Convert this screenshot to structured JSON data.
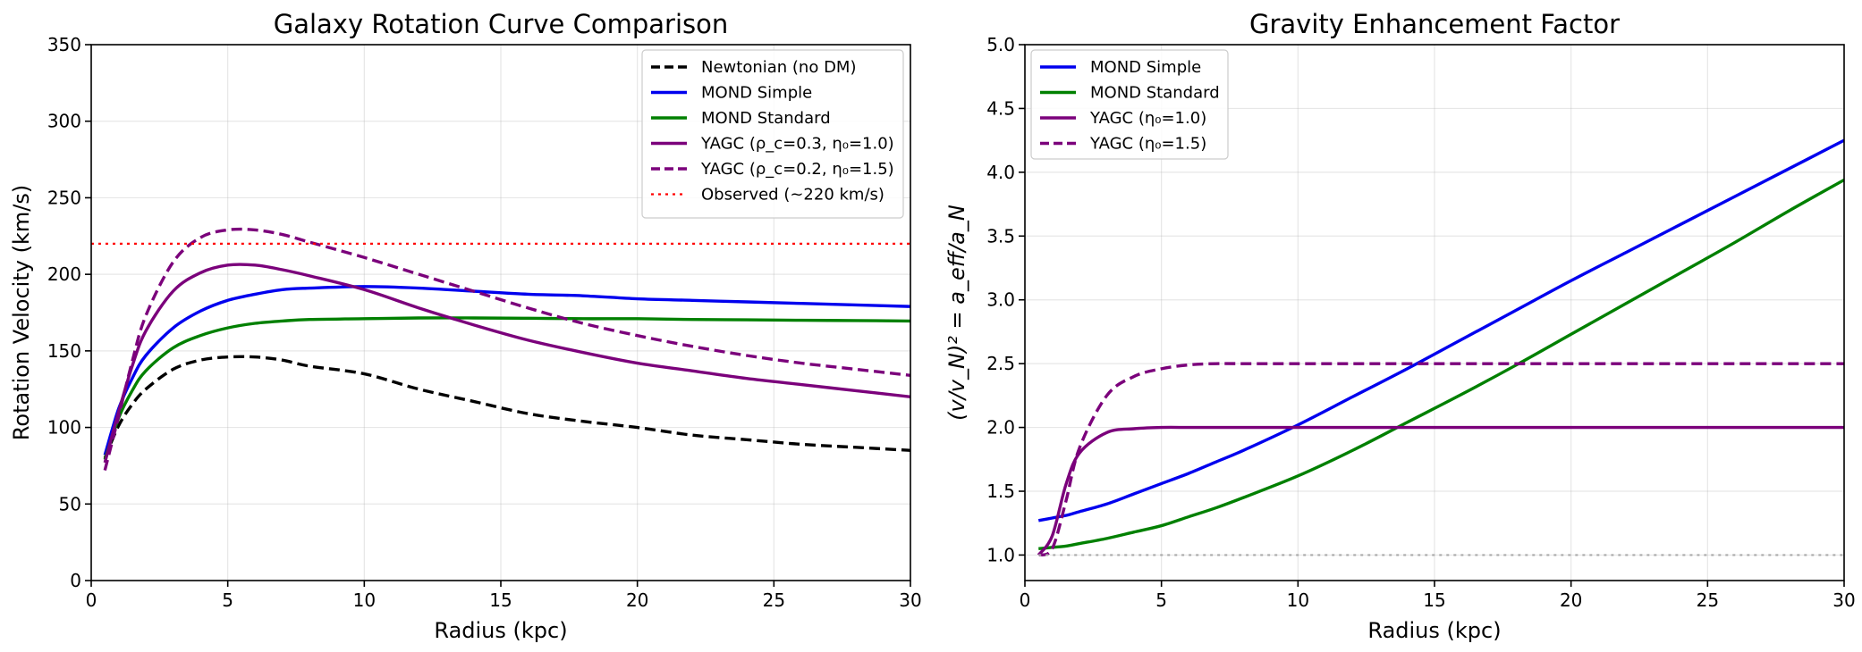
{
  "chart_data": [
    {
      "type": "line",
      "title": "Galaxy Rotation Curve Comparison",
      "xlabel": "Radius (kpc)",
      "ylabel": "Rotation Velocity (km/s)",
      "xlim": [
        0,
        30
      ],
      "ylim": [
        0,
        350
      ],
      "xticks": [
        "0",
        "5",
        "10",
        "15",
        "20",
        "25",
        "30"
      ],
      "yticks": [
        "0",
        "50",
        "100",
        "150",
        "200",
        "250",
        "300",
        "350"
      ],
      "grid": true,
      "legend_position": "top-right",
      "x": [
        0.5,
        1,
        1.5,
        2,
        3,
        4,
        5,
        6,
        7,
        8,
        10,
        12,
        14,
        16,
        18,
        20,
        22,
        24,
        26,
        28,
        30
      ],
      "series": [
        {
          "name": "Newtonian (no DM)",
          "legend_label": "Newtonian (no DM)",
          "color": "#000000",
          "dash": "dashed",
          "values": [
            80,
            101,
            115,
            125,
            138,
            144,
            146,
            146,
            144,
            140,
            135,
            125,
            117,
            109,
            104,
            100,
            95,
            92,
            89,
            87,
            85
          ]
        },
        {
          "name": "MOND Simple",
          "legend_label": "MOND Simple",
          "color": "#0000ee",
          "dash": "solid",
          "values": [
            82,
            112,
            132,
            147,
            165,
            176,
            183,
            187,
            190,
            191,
            192,
            191,
            189,
            187,
            186,
            184,
            183,
            182,
            181,
            180,
            179
          ]
        },
        {
          "name": "MOND Standard",
          "legend_label": "MOND Standard",
          "color": "#008000",
          "dash": "solid",
          "values": [
            79,
            106,
            124,
            137,
            152,
            160,
            165,
            168,
            169.5,
            170.5,
            171,
            171.5,
            171.5,
            171.3,
            171,
            171,
            170.5,
            170.3,
            170,
            169.8,
            169.5
          ]
        },
        {
          "name": "YAGC (ρc=0.3, η0=1.0)",
          "legend_label": "YAGC (ρ_c=0.3, η₀=1.0)",
          "color": "#7b007b",
          "dash": "solid",
          "values": [
            77,
            110,
            140,
            163,
            189,
            201,
            206,
            206,
            203,
            199,
            190,
            178,
            167,
            157,
            149,
            142,
            137,
            132,
            128,
            124,
            120
          ]
        },
        {
          "name": "YAGC (ρc=0.2, η0=1.5)",
          "legend_label": "YAGC (ρ_c=0.2, η₀=1.5)",
          "color": "#7b007b",
          "dash": "dashed",
          "values": [
            72,
            107,
            143,
            173,
            208,
            224,
            229,
            229,
            226,
            221,
            211,
            200,
            189,
            178,
            168,
            160,
            153,
            147,
            142,
            138,
            134
          ]
        },
        {
          "name": "Observed (~220 km/s)",
          "legend_label": "Observed (~220 km/s)",
          "color": "#ff0000",
          "dash": "dotted",
          "x_range": [
            0,
            30
          ],
          "constant": 220
        }
      ]
    },
    {
      "type": "line",
      "title": "Gravity Enhancement Factor",
      "xlabel": "Radius (kpc)",
      "ylabel": "(v/v_N)² = a_eff/a_N",
      "xlim": [
        0,
        30
      ],
      "ylim": [
        0.8,
        5.0
      ],
      "xticks": [
        "0",
        "5",
        "10",
        "15",
        "20",
        "25",
        "30"
      ],
      "yticks": [
        "1.0",
        "1.5",
        "2.0",
        "2.5",
        "3.0",
        "3.5",
        "4.0",
        "4.5",
        "5.0"
      ],
      "grid": true,
      "legend_position": "top-left",
      "x": [
        0.5,
        1,
        1.5,
        2,
        3,
        4,
        5,
        6,
        7,
        8,
        10,
        12,
        14,
        16,
        18,
        20,
        22,
        24,
        26,
        28,
        30
      ],
      "series": [
        {
          "name": "MOND Simple",
          "legend_label": "MOND Simple",
          "color": "#0000ee",
          "dash": "solid",
          "values": [
            1.27,
            1.29,
            1.31,
            1.34,
            1.4,
            1.48,
            1.56,
            1.64,
            1.73,
            1.82,
            2.02,
            2.24,
            2.46,
            2.69,
            2.92,
            3.15,
            3.37,
            3.59,
            3.81,
            4.03,
            4.25
          ]
        },
        {
          "name": "MOND Standard",
          "legend_label": "MOND Standard",
          "color": "#008000",
          "dash": "solid",
          "values": [
            1.05,
            1.06,
            1.07,
            1.09,
            1.13,
            1.18,
            1.23,
            1.3,
            1.37,
            1.45,
            1.62,
            1.82,
            2.04,
            2.26,
            2.49,
            2.73,
            2.97,
            3.21,
            3.45,
            3.7,
            3.94
          ]
        },
        {
          "name": "YAGC (η0=1.0)",
          "legend_label": "YAGC (η₀=1.0)",
          "color": "#7b007b",
          "dash": "solid",
          "values": [
            1.0,
            1.15,
            1.55,
            1.8,
            1.96,
            1.99,
            2.0,
            2.0,
            2.0,
            2.0,
            2.0,
            2.0,
            2.0,
            2.0,
            2.0,
            2.0,
            2.0,
            2.0,
            2.0,
            2.0,
            2.0
          ]
        },
        {
          "name": "YAGC (η0=1.5)",
          "legend_label": "YAGC (η₀=1.5)",
          "color": "#7b007b",
          "dash": "dashed",
          "values": [
            1.0,
            1.05,
            1.42,
            1.84,
            2.25,
            2.4,
            2.46,
            2.49,
            2.5,
            2.5,
            2.5,
            2.5,
            2.5,
            2.5,
            2.5,
            2.5,
            2.5,
            2.5,
            2.5,
            2.5,
            2.5
          ]
        },
        {
          "name": "Reference (1.0)",
          "color": "#aaaaaa",
          "dash": "dotted",
          "x_range": [
            0.5,
            30
          ],
          "constant": 1.0
        }
      ]
    }
  ]
}
